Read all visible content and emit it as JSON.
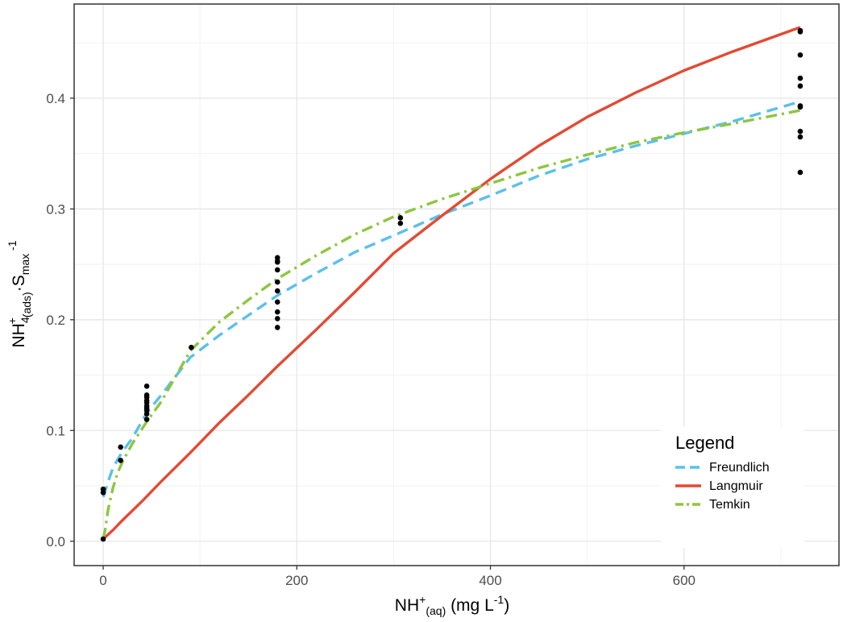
{
  "chart_data": {
    "type": "line",
    "xlabel": {
      "base": "NH",
      "sup": "+",
      "sub": "(aq)",
      "unit_prefix": " (mg L",
      "unit_sup": "-1",
      "unit_suffix": ")"
    },
    "ylabel": {
      "base": "NH",
      "sub1": "4",
      "sup1": "+",
      "sub2": "(ads)",
      "dot": "·S",
      "sub3": "max",
      "sup3": " -1"
    },
    "xlim": [
      -30,
      760
    ],
    "ylim": [
      -0.022,
      0.485
    ],
    "x_ticks": [
      0,
      200,
      400,
      600
    ],
    "x_tick_labels": [
      "0",
      "200",
      "400",
      "600"
    ],
    "y_ticks": [
      0.0,
      0.1,
      0.2,
      0.3,
      0.4
    ],
    "y_tick_labels": [
      "0.0",
      "0.1",
      "0.2",
      "0.3",
      "0.4"
    ],
    "grid": true,
    "legend": {
      "title": "Legend",
      "placement": "bottom-right",
      "entries": [
        {
          "label": "Freundlich",
          "color": "#5bc0eb",
          "style": "dashed"
        },
        {
          "label": "Langmuir",
          "color": "#e34a33",
          "style": "solid"
        },
        {
          "label": "Temkin",
          "color": "#8dc63f",
          "style": "dashdot"
        }
      ]
    },
    "series": [
      {
        "name": "Freundlich",
        "color": "#5bc0eb",
        "style": "dashed",
        "x": [
          0,
          1,
          3,
          6,
          10,
          15,
          20,
          30,
          45,
          60,
          90,
          120,
          150,
          180,
          220,
          260,
          300,
          350,
          400,
          450,
          500,
          550,
          600,
          650,
          720
        ],
        "y": [
          0.04,
          0.042,
          0.048,
          0.056,
          0.066,
          0.074,
          0.081,
          0.093,
          0.116,
          0.132,
          0.166,
          0.186,
          0.204,
          0.222,
          0.242,
          0.261,
          0.276,
          0.295,
          0.312,
          0.33,
          0.345,
          0.357,
          0.368,
          0.379,
          0.397
        ]
      },
      {
        "name": "Langmuir",
        "color": "#e34a33",
        "style": "solid",
        "x": [
          0,
          10,
          20,
          40,
          60,
          90,
          120,
          150,
          180,
          220,
          260,
          300,
          350,
          400,
          450,
          500,
          550,
          600,
          650,
          720
        ],
        "y": [
          0.002,
          0.01,
          0.019,
          0.036,
          0.054,
          0.08,
          0.107,
          0.132,
          0.158,
          0.191,
          0.225,
          0.26,
          0.294,
          0.327,
          0.357,
          0.383,
          0.405,
          0.425,
          0.442,
          0.464
        ]
      },
      {
        "name": "Temkin",
        "color": "#8dc63f",
        "style": "dashdot",
        "x": [
          0,
          2,
          5,
          10,
          15,
          20,
          30,
          45,
          60,
          90,
          120,
          150,
          180,
          220,
          260,
          300,
          350,
          400,
          450,
          500,
          550,
          600,
          650,
          720
        ],
        "y": [
          0.002,
          0.01,
          0.028,
          0.048,
          0.062,
          0.072,
          0.088,
          0.108,
          0.126,
          0.172,
          0.198,
          0.218,
          0.237,
          0.258,
          0.277,
          0.293,
          0.309,
          0.323,
          0.337,
          0.349,
          0.36,
          0.369,
          0.377,
          0.389
        ]
      }
    ],
    "points": {
      "x": [
        0,
        0,
        0,
        18,
        18,
        45,
        45,
        45,
        45,
        45,
        45,
        45,
        45,
        45,
        45,
        91,
        180,
        180,
        180,
        180,
        180,
        180,
        180,
        180,
        180,
        180,
        307,
        307,
        720,
        720,
        720,
        720,
        720,
        720,
        720,
        720,
        720,
        720
      ],
      "y": [
        0.047,
        0.044,
        0.002,
        0.085,
        0.073,
        0.14,
        0.13,
        0.127,
        0.125,
        0.122,
        0.118,
        0.115,
        0.11,
        0.132,
        0.12,
        0.175,
        0.256,
        0.253,
        0.245,
        0.234,
        0.226,
        0.216,
        0.207,
        0.201,
        0.193,
        0.252,
        0.292,
        0.287,
        0.46,
        0.439,
        0.418,
        0.411,
        0.393,
        0.392,
        0.37,
        0.365,
        0.333,
        0.461
      ]
    }
  }
}
